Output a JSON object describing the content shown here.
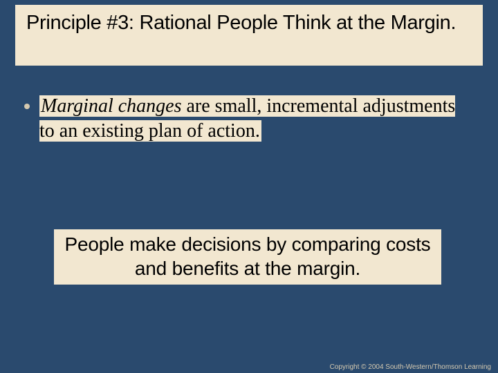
{
  "colors": {
    "slide_background": "#2a4a6e",
    "panel_background": "#f2e7d0",
    "bullet_color": "#d4c9b0",
    "title_text_color": "#000000",
    "body_text_color": "#000000",
    "copyright_color": "#d4c9b0"
  },
  "fonts": {
    "title_family": "Arial, Helvetica, sans-serif",
    "title_size_pt": 22,
    "body_family": "Times New Roman, Times, serif",
    "body_size_pt": 21,
    "callout_family": "Arial, Helvetica, sans-serif",
    "callout_size_pt": 21,
    "copyright_size_pt": 7
  },
  "title": "Principle #3: Rational People Think at the Margin.",
  "bullet": {
    "emphasis": "Marginal changes",
    "rest": " are small, incremental adjustments to an existing plan of action."
  },
  "callout": "People make decisions by comparing costs and benefits at the margin.",
  "copyright": "Copyright © 2004 South-Western/Thomson Learning"
}
